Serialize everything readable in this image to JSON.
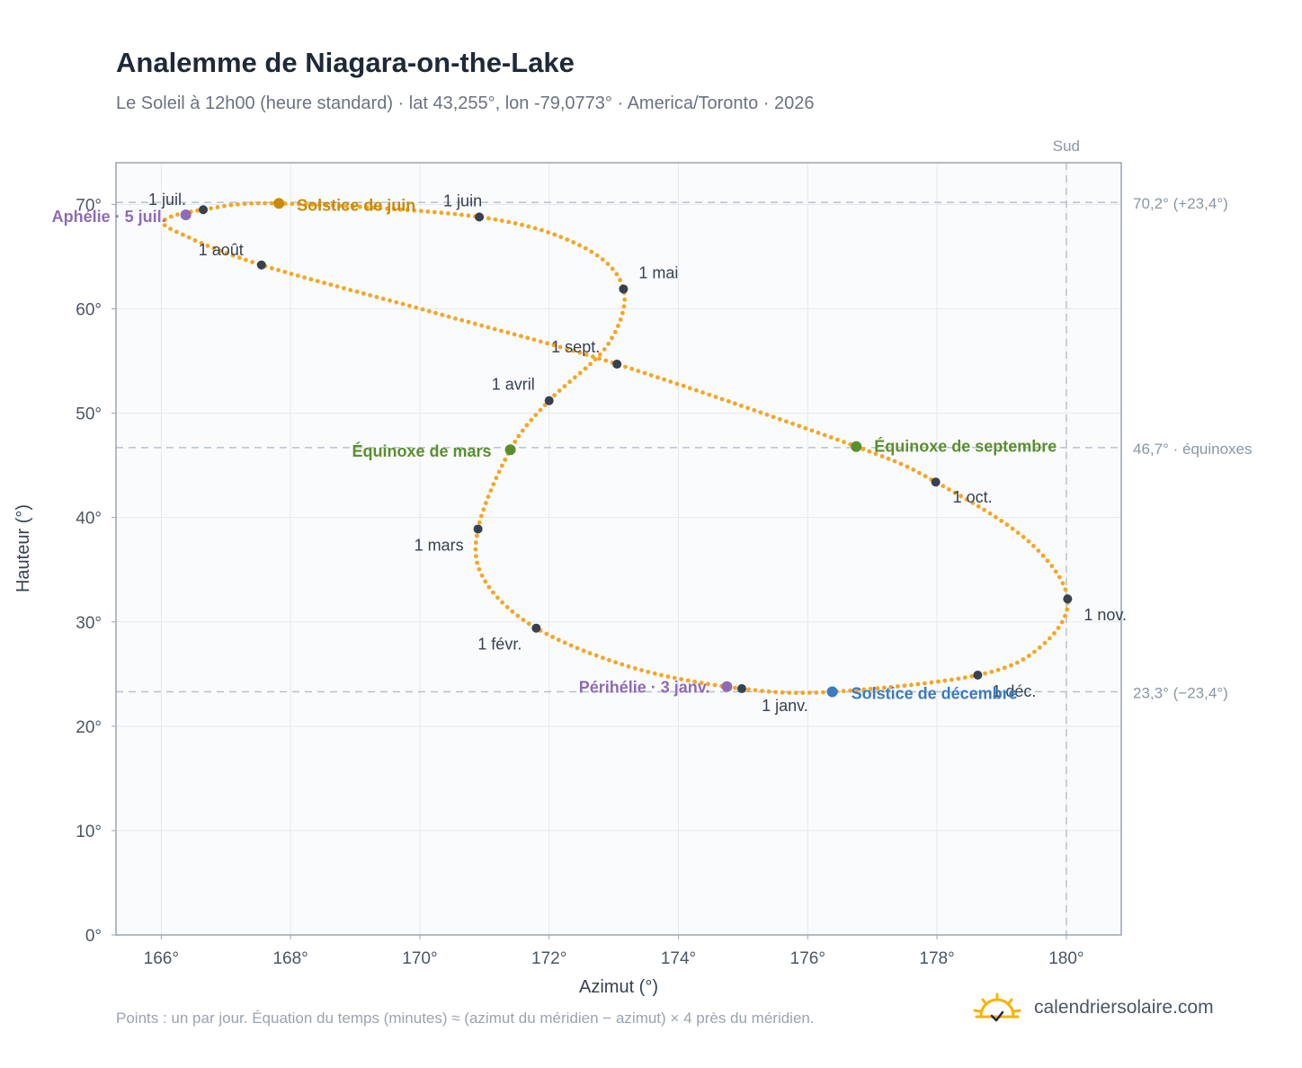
{
  "header": {
    "title": "Analemme de Niagara-on-the-Lake",
    "subtitle": "Le Soleil à 12h00 (heure standard) · lat 43,255°, lon -79,0773° · America/Toronto · 2026"
  },
  "footer": {
    "note": "Points : un par jour. Équation du temps (minutes) ≈ (azimut du méridien − azimut) × 4 près du méridien.",
    "brand": "calendriersolaire.com"
  },
  "colors": {
    "curve": "#f5a623",
    "month_dot": "#374151",
    "solstice_juin": "#c98a09",
    "solstice_dec": "#3b7bbf",
    "equinox": "#5a8f2e",
    "perihelion": "#8e6bb5",
    "reference_line": "#b8c2cc",
    "plot_bg": "#fafbfd",
    "grid": "#e5e9ee"
  },
  "chart_data": {
    "type": "scatter",
    "title": "Analemme de Niagara-on-the-Lake",
    "xlabel": "Azimut (°)",
    "ylabel": "Hauteur (°)",
    "xlim": [
      165.3,
      180.85
    ],
    "ylim": [
      0,
      74
    ],
    "grid": true,
    "x_ticks": [
      {
        "value": 166,
        "label": "166°"
      },
      {
        "value": 168,
        "label": "168°"
      },
      {
        "value": 170,
        "label": "170°"
      },
      {
        "value": 172,
        "label": "172°"
      },
      {
        "value": 174,
        "label": "174°"
      },
      {
        "value": 176,
        "label": "176°"
      },
      {
        "value": 178,
        "label": "178°"
      },
      {
        "value": 180,
        "label": "180°"
      }
    ],
    "y_ticks": [
      {
        "value": 0,
        "label": "0°"
      },
      {
        "value": 10,
        "label": "10°"
      },
      {
        "value": 20,
        "label": "20°"
      },
      {
        "value": 30,
        "label": "30°"
      },
      {
        "value": 40,
        "label": "40°"
      },
      {
        "value": 50,
        "label": "50°"
      },
      {
        "value": 60,
        "label": "60°"
      },
      {
        "value": 70,
        "label": "70°"
      }
    ],
    "reference_lines": [
      {
        "axis": "y",
        "value": 70.2,
        "label": "70,2° (+23,4°)"
      },
      {
        "axis": "y",
        "value": 46.7,
        "label": "46,7° · équinoxes"
      },
      {
        "axis": "y",
        "value": 23.3,
        "label": "23,3° (−23,4°)"
      },
      {
        "axis": "x",
        "value": 180,
        "label": "Sud"
      }
    ],
    "months": [
      {
        "label": "1 janv.",
        "az": 174.98,
        "alt": 23.6
      },
      {
        "label": "1 févr.",
        "az": 171.8,
        "alt": 29.4
      },
      {
        "label": "1 mars",
        "az": 170.9,
        "alt": 38.9
      },
      {
        "label": "1 avril",
        "az": 172.0,
        "alt": 51.2
      },
      {
        "label": "1 mai",
        "az": 173.15,
        "alt": 61.9
      },
      {
        "label": "1 juin",
        "az": 170.92,
        "alt": 68.8
      },
      {
        "label": "1 juil.",
        "az": 166.65,
        "alt": 69.5
      },
      {
        "label": "1 août",
        "az": 167.55,
        "alt": 64.2
      },
      {
        "label": "1 sept.",
        "az": 173.05,
        "alt": 54.7
      },
      {
        "label": "1 oct.",
        "az": 177.98,
        "alt": 43.4
      },
      {
        "label": "1 nov.",
        "az": 180.02,
        "alt": 32.2
      },
      {
        "label": "1 déc.",
        "az": 178.63,
        "alt": 24.9
      }
    ],
    "events": [
      {
        "label": "Solstice de juin",
        "az": 167.82,
        "alt": 70.1,
        "color_key": "solstice_juin"
      },
      {
        "label": "Aphélie · 5 juil.",
        "az": 166.38,
        "alt": 69.0,
        "color_key": "perihelion"
      },
      {
        "label": "Équinoxe de mars",
        "az": 171.4,
        "alt": 46.5,
        "color_key": "equinox"
      },
      {
        "label": "Équinoxe de septembre",
        "az": 176.75,
        "alt": 46.8,
        "color_key": "equinox"
      },
      {
        "label": "Périhélie · 3 janv.",
        "az": 174.75,
        "alt": 23.8,
        "color_key": "perihelion"
      },
      {
        "label": "Solstice de décembre",
        "az": 176.38,
        "alt": 23.3,
        "color_key": "solstice_dec"
      }
    ],
    "series": [
      {
        "type": "analemma",
        "points": [
          [
            174.98,
            23.6
          ],
          [
            173.3,
            25.6
          ],
          [
            171.8,
            29.4
          ],
          [
            171.0,
            34.0
          ],
          [
            170.9,
            38.9
          ],
          [
            171.4,
            46.5
          ],
          [
            172.0,
            51.2
          ],
          [
            172.9,
            56.5
          ],
          [
            173.15,
            61.9
          ],
          [
            172.5,
            66.0
          ],
          [
            170.92,
            68.8
          ],
          [
            167.82,
            70.1
          ],
          [
            166.65,
            69.5
          ],
          [
            166.05,
            68.5
          ],
          [
            166.3,
            67.2
          ],
          [
            167.55,
            64.2
          ],
          [
            170.3,
            59.5
          ],
          [
            173.05,
            54.7
          ],
          [
            176.75,
            46.8
          ],
          [
            177.98,
            43.4
          ],
          [
            179.4,
            37.8
          ],
          [
            180.02,
            32.2
          ],
          [
            179.6,
            27.6
          ],
          [
            178.63,
            24.9
          ],
          [
            176.38,
            23.3
          ],
          [
            174.98,
            23.6
          ]
        ]
      }
    ]
  }
}
